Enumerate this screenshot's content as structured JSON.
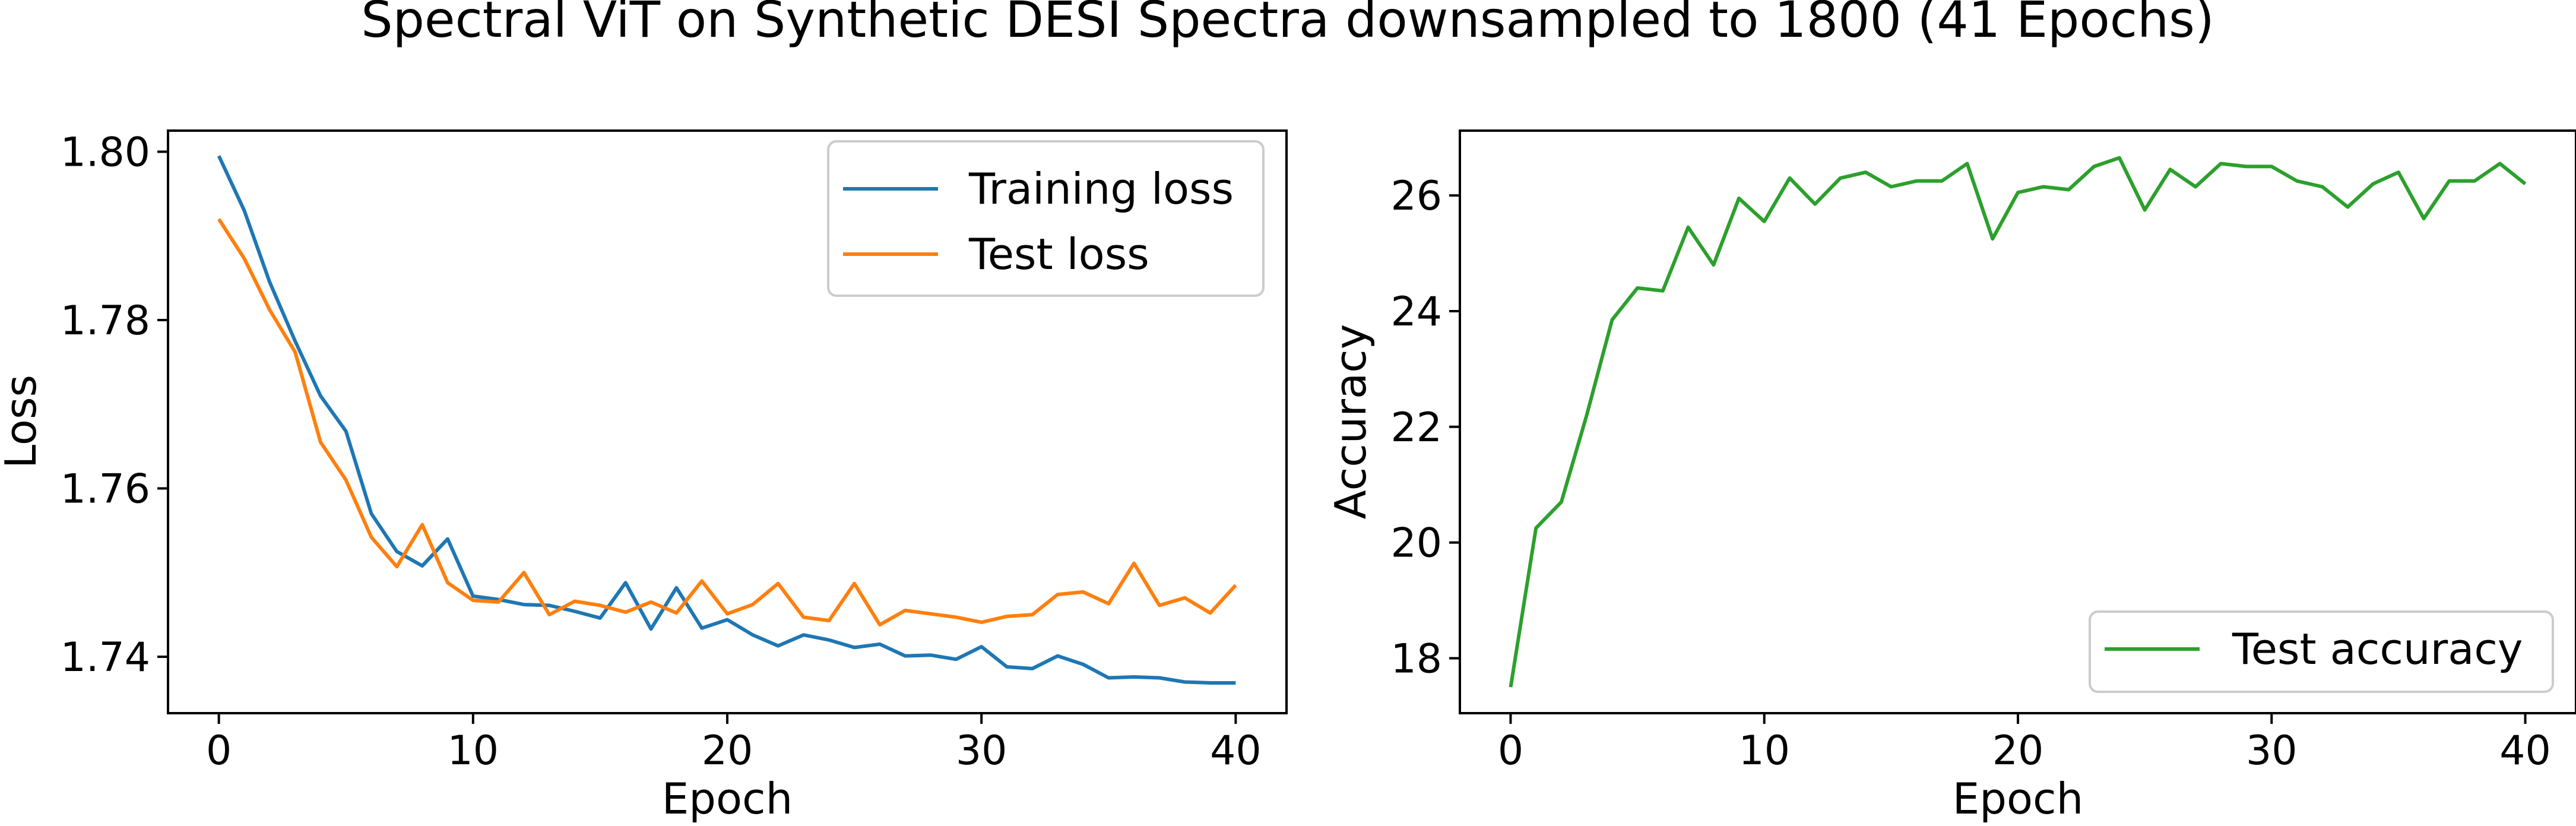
{
  "figure": {
    "title": "Spectral ViT on Synthetic DESI Spectra downsampled to 1800 (41 Epochs)"
  },
  "colors": {
    "train": "#1f77b4",
    "test": "#ff7f0e",
    "accuracy": "#2ca02c"
  },
  "chart_data": [
    {
      "type": "line",
      "title": "",
      "xlabel": "Epoch",
      "ylabel": "Loss",
      "xlim": [
        -2,
        42
      ],
      "ylim": [
        1.7333,
        1.8025
      ],
      "xticks": [
        0,
        10,
        20,
        30,
        40
      ],
      "yticks": [
        1.74,
        1.76,
        1.78,
        1.8
      ],
      "ytick_labels": [
        "1.74",
        "1.76",
        "1.78",
        "1.80"
      ],
      "legend_position": "top-right",
      "grid": false,
      "x": [
        0,
        1,
        2,
        3,
        4,
        5,
        6,
        7,
        8,
        9,
        10,
        11,
        12,
        13,
        14,
        15,
        16,
        17,
        18,
        19,
        20,
        21,
        22,
        23,
        24,
        25,
        26,
        27,
        28,
        29,
        30,
        31,
        32,
        33,
        34,
        35,
        36,
        37,
        38,
        39,
        40
      ],
      "series": [
        {
          "name": "Training loss",
          "color": "#1f77b4",
          "values": [
            1.7995,
            1.793,
            1.7845,
            1.7775,
            1.771,
            1.7668,
            1.757,
            1.7525,
            1.7508,
            1.754,
            1.7472,
            1.7468,
            1.7462,
            1.7461,
            1.7454,
            1.7446,
            1.7488,
            1.7433,
            1.7482,
            1.7434,
            1.7444,
            1.7426,
            1.7413,
            1.7426,
            1.742,
            1.7411,
            1.7415,
            1.7401,
            1.7402,
            1.7397,
            1.7412,
            1.7388,
            1.7386,
            1.7401,
            1.7391,
            1.7375,
            1.7376,
            1.7375,
            1.737,
            1.7369,
            1.7369
          ]
        },
        {
          "name": "Test loss",
          "color": "#ff7f0e",
          "values": [
            1.792,
            1.7873,
            1.7812,
            1.7762,
            1.7655,
            1.761,
            1.7542,
            1.7507,
            1.7557,
            1.7488,
            1.7467,
            1.7465,
            1.75,
            1.745,
            1.7466,
            1.7461,
            1.7453,
            1.7465,
            1.7452,
            1.749,
            1.7451,
            1.7462,
            1.7487,
            1.7447,
            1.7443,
            1.7487,
            1.7438,
            1.7455,
            1.7451,
            1.7447,
            1.7441,
            1.7448,
            1.745,
            1.7474,
            1.7477,
            1.7463,
            1.7511,
            1.7461,
            1.747,
            1.7452,
            1.7485
          ]
        }
      ]
    },
    {
      "type": "line",
      "title": "",
      "xlabel": "Epoch",
      "ylabel": "Accuracy",
      "xlim": [
        -2,
        42
      ],
      "ylim": [
        17.05,
        27.12
      ],
      "xticks": [
        0,
        10,
        20,
        30,
        40
      ],
      "yticks": [
        18,
        20,
        22,
        24,
        26
      ],
      "ytick_labels": [
        "18",
        "20",
        "22",
        "24",
        "26"
      ],
      "legend_position": "bottom-right",
      "grid": false,
      "x": [
        0,
        1,
        2,
        3,
        4,
        5,
        6,
        7,
        8,
        9,
        10,
        11,
        12,
        13,
        14,
        15,
        16,
        17,
        18,
        19,
        20,
        21,
        22,
        23,
        24,
        25,
        26,
        27,
        28,
        29,
        30,
        31,
        32,
        33,
        34,
        35,
        36,
        37,
        38,
        39,
        40
      ],
      "series": [
        {
          "name": "Test accuracy",
          "color": "#2ca02c",
          "values": [
            17.5,
            20.25,
            20.7,
            22.2,
            23.85,
            24.4,
            24.35,
            25.45,
            24.8,
            25.95,
            25.55,
            26.3,
            25.85,
            26.3,
            26.4,
            26.15,
            26.25,
            26.25,
            26.55,
            25.25,
            26.05,
            26.15,
            26.1,
            26.5,
            26.65,
            25.75,
            26.45,
            26.15,
            26.55,
            26.5,
            26.5,
            26.25,
            26.15,
            25.8,
            26.2,
            26.4,
            25.6,
            26.25,
            26.25,
            26.55,
            26.2
          ]
        }
      ]
    }
  ]
}
